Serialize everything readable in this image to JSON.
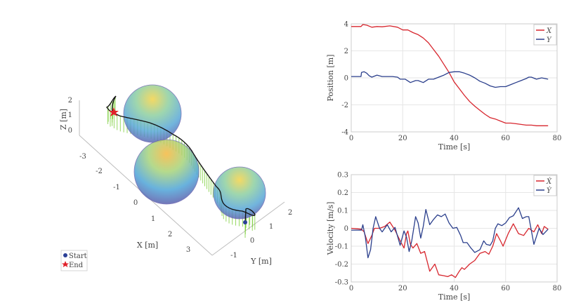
{
  "chart_data": [
    {
      "type": "line3d",
      "title": "",
      "xlabel": "X [m]",
      "ylabel": "Y [m]",
      "zlabel": "Z [m]",
      "xticks": [
        "-3",
        "-2",
        "-1",
        "0",
        "1",
        "2",
        "3"
      ],
      "yticks": [
        "-1",
        "0",
        "1",
        "2"
      ],
      "zticks": [
        "0",
        "1",
        "2"
      ],
      "legend": [
        {
          "label": "Start",
          "marker": "circle",
          "color": "#2b3f96"
        },
        {
          "label": "End",
          "marker": "star",
          "color": "#e0202a"
        }
      ],
      "legend_placement": "bottom-left",
      "obstacles": 3,
      "path_color": "#111111",
      "stem_color": "#7ccf3a"
    },
    {
      "type": "line",
      "xlabel": "Time [s]",
      "ylabel": "Position [m]",
      "xlim": [
        0,
        80
      ],
      "ylim": [
        -4,
        4
      ],
      "xticks": [
        "0",
        "20",
        "40",
        "60",
        "80"
      ],
      "yticks": [
        "-4",
        "-2",
        "0",
        "2",
        "4"
      ],
      "grid": true,
      "legend_placement": "top-right",
      "series": [
        {
          "name": "X",
          "color": "#d7262e",
          "t": [
            0,
            3.8,
            4.5,
            6,
            8,
            10,
            12,
            15,
            18,
            20,
            22,
            24,
            26,
            28,
            30,
            32,
            34,
            36,
            38,
            40,
            42,
            44,
            46,
            48,
            50,
            52,
            54,
            56,
            58,
            60,
            62,
            64,
            66,
            68,
            70,
            72,
            74,
            76.5
          ],
          "values": [
            3.8,
            3.8,
            3.95,
            3.9,
            3.75,
            3.8,
            3.78,
            3.85,
            3.75,
            3.55,
            3.55,
            3.35,
            3.2,
            2.95,
            2.6,
            2.1,
            1.6,
            1.0,
            0.4,
            -0.3,
            -0.8,
            -1.3,
            -1.75,
            -2.1,
            -2.4,
            -2.7,
            -2.95,
            -3.05,
            -3.2,
            -3.35,
            -3.35,
            -3.4,
            -3.45,
            -3.5,
            -3.5,
            -3.55,
            -3.55,
            -3.55
          ]
        },
        {
          "name": "Y",
          "color": "#2b3f8c",
          "t": [
            0,
            3.8,
            4,
            5,
            6,
            7,
            8,
            10,
            12,
            14,
            16,
            18,
            19,
            21,
            23,
            25,
            26,
            28,
            30,
            32,
            34,
            36,
            38,
            40,
            42,
            44,
            46,
            48,
            50,
            52,
            54,
            56,
            58,
            60,
            62,
            64,
            66,
            68,
            69,
            70,
            72,
            74,
            76.5
          ],
          "values": [
            0.1,
            0.1,
            0.4,
            0.45,
            0.35,
            0.15,
            0.05,
            0.2,
            0.1,
            0.1,
            0.1,
            0.05,
            -0.1,
            -0.1,
            -0.35,
            -0.2,
            -0.2,
            -0.35,
            -0.1,
            -0.1,
            0.05,
            0.2,
            0.4,
            0.45,
            0.45,
            0.35,
            0.2,
            0,
            -0.25,
            -0.4,
            -0.6,
            -0.7,
            -0.65,
            -0.65,
            -0.5,
            -0.35,
            -0.2,
            -0.05,
            0.05,
            0.05,
            -0.1,
            0,
            -0.1
          ]
        }
      ]
    },
    {
      "type": "line",
      "xlabel": "Time [s]",
      "ylabel": "Velocity [m/s]",
      "xlim": [
        0,
        80
      ],
      "ylim": [
        -0.3,
        0.3
      ],
      "xticks": [
        "0",
        "20",
        "40",
        "60",
        "80"
      ],
      "yticks": [
        "-0.3",
        "-0.2",
        "-0.1",
        "0",
        "0.1",
        "0.2",
        "0.3"
      ],
      "grid": true,
      "legend_placement": "top-right",
      "series": [
        {
          "name": "Ẋ",
          "color": "#d7262e",
          "t": [
            0,
            4,
            5,
            6.5,
            8,
            9,
            11,
            13,
            15,
            17,
            19,
            20.5,
            21.5,
            22,
            23,
            24,
            25.5,
            27,
            28.5,
            30.5,
            32.5,
            34,
            36,
            37.5,
            39,
            40.5,
            42,
            43,
            44,
            46,
            48,
            50,
            52,
            53.5,
            55,
            56.5,
            58,
            59,
            61,
            63,
            65,
            67,
            69,
            71,
            72.5,
            74,
            75,
            76.5
          ],
          "values": [
            0,
            -0.005,
            -0.02,
            -0.085,
            -0.04,
            0,
            0,
            0.01,
            0.035,
            -0.01,
            -0.07,
            -0.11,
            -0.03,
            -0.015,
            -0.09,
            -0.11,
            -0.085,
            -0.14,
            -0.13,
            -0.24,
            -0.2,
            -0.26,
            -0.265,
            -0.27,
            -0.26,
            -0.275,
            -0.24,
            -0.22,
            -0.23,
            -0.2,
            -0.18,
            -0.14,
            -0.13,
            -0.145,
            -0.1,
            -0.03,
            -0.07,
            -0.1,
            -0.03,
            0.025,
            -0.03,
            -0.04,
            0,
            -0.02,
            0.02,
            -0.03,
            0.01,
            -0.005
          ]
        },
        {
          "name": "Ẏ",
          "color": "#2b3f8c",
          "t": [
            0,
            4,
            4.5,
            5.5,
            6.5,
            7.5,
            8.5,
            9.5,
            11,
            12,
            14,
            15.5,
            17,
            19,
            20.5,
            21.5,
            22.5,
            23.5,
            25,
            26,
            27,
            28,
            29,
            30.5,
            32,
            33.5,
            35,
            36.5,
            38,
            39.5,
            41,
            42.5,
            43.5,
            45,
            46.5,
            48,
            50,
            51.5,
            52.5,
            54,
            55,
            56,
            57,
            58.5,
            60,
            61.5,
            63,
            65,
            66.5,
            68,
            69,
            71,
            73,
            74.5,
            76.5
          ],
          "values": [
            -0.01,
            -0.01,
            0.02,
            -0.05,
            -0.165,
            -0.12,
            0,
            0.065,
            0,
            -0.02,
            0.02,
            -0.02,
            0.005,
            -0.095,
            -0.015,
            -0.05,
            -0.13,
            -0.07,
            0.065,
            0.03,
            -0.055,
            0.01,
            0.105,
            0.02,
            0.05,
            0.075,
            0.065,
            0.08,
            0.03,
            0,
            0.005,
            -0.04,
            -0.08,
            -0.08,
            -0.11,
            -0.135,
            -0.12,
            -0.07,
            -0.09,
            -0.095,
            -0.07,
            0,
            0.025,
            0.015,
            0.03,
            0.06,
            0.07,
            0.115,
            0.055,
            0.065,
            0.065,
            -0.09,
            0,
            -0.035,
            -0.005
          ]
        }
      ]
    }
  ]
}
